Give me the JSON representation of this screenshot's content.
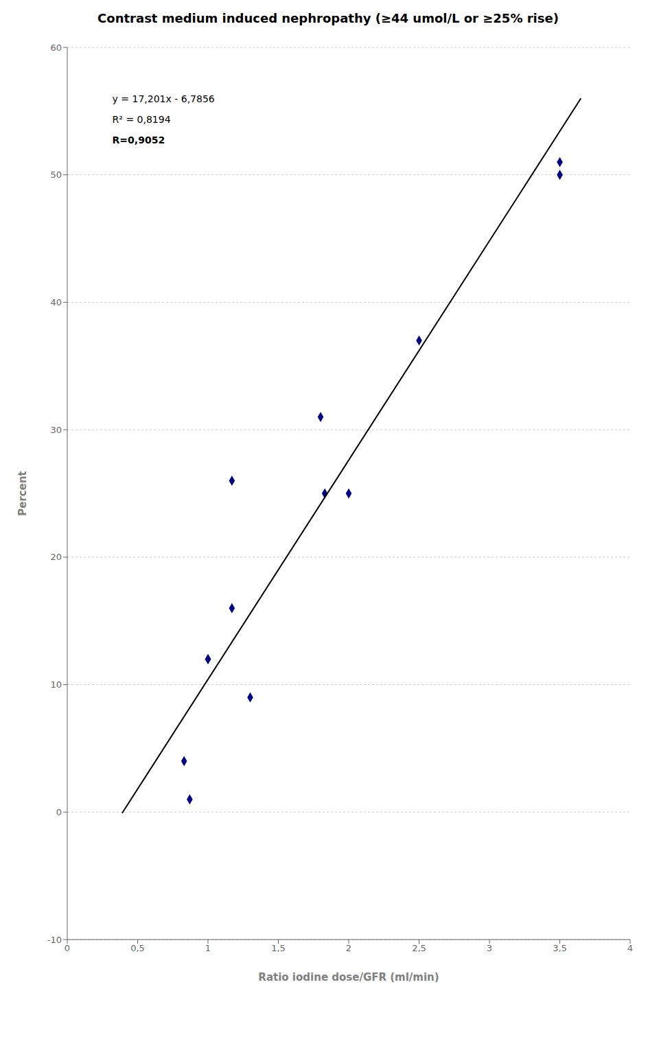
{
  "chart_data": {
    "type": "scatter",
    "title": "Contrast medium induced nephropathy (≥44 umol/L or ≥25% rise)",
    "x_label": "Ratio iodine dose/GFR (ml/min)",
    "y_label": "Percent",
    "series": [
      {
        "type": "scatter",
        "color": "#00008B",
        "marker": "diamond",
        "x": [
          0.83,
          0.87,
          1.0,
          1.0,
          1.17,
          1.17,
          1.3,
          1.8,
          1.83,
          2.0,
          2.5,
          3.5,
          3.5
        ],
        "values": [
          4,
          1,
          12,
          12,
          16,
          26,
          9,
          31,
          25,
          25,
          37,
          50,
          51
        ]
      },
      {
        "type": "line",
        "color": "#000000",
        "x": [
          0.39,
          3.65
        ],
        "values": [
          -0.07721,
          55.99805
        ]
      }
    ],
    "xlim": [
      0,
      4
    ],
    "ylim": [
      -10,
      60
    ],
    "xticks": [
      0,
      {
        "value": 0.5,
        "label": "0,5"
      },
      1,
      {
        "value": 1.5,
        "label": "1,5"
      },
      2,
      {
        "value": 2.5,
        "label": "2,5"
      },
      3,
      {
        "value": 3.5,
        "label": "3,5"
      },
      4
    ],
    "yticks": [
      -10,
      0,
      10,
      20,
      30,
      40,
      50,
      60
    ],
    "annotations": [
      "y = 17,201x - 6,7856",
      "R² = 0,8194",
      "R=0,9052"
    ],
    "grid": "y"
  }
}
